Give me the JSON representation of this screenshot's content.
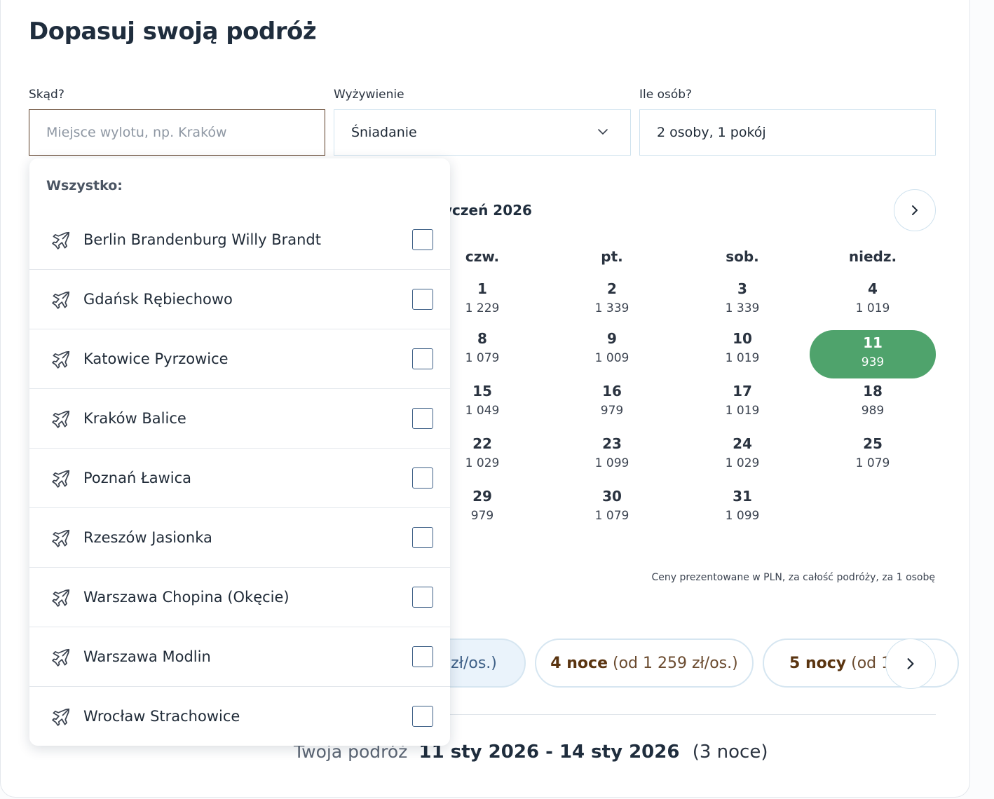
{
  "page_title": "Dopasuj swoją podróż",
  "fields": {
    "from": {
      "label": "Skąd?",
      "placeholder": "Miejsce wylotu, np. Kraków",
      "value": ""
    },
    "board": {
      "label": "Wyżywienie",
      "value": "Śniadanie"
    },
    "people": {
      "label": "Ile osób?",
      "value": "2 osoby, 1 pokój"
    }
  },
  "calendar": {
    "month_label": "yczeń 2026",
    "next_icon": "chevron-right-icon",
    "weekdays": [
      "czw.",
      "pt.",
      "sob.",
      "niedz."
    ],
    "weeks": [
      [
        {
          "d": "1",
          "p": "1 229"
        },
        {
          "d": "2",
          "p": "1 339"
        },
        {
          "d": "3",
          "p": "1 339"
        },
        {
          "d": "4",
          "p": "1 019"
        }
      ],
      [
        {
          "d": "8",
          "p": "1 079"
        },
        {
          "d": "9",
          "p": "1 009"
        },
        {
          "d": "10",
          "p": "1 019"
        },
        {
          "d": "11",
          "p": "939",
          "selected": true
        }
      ],
      [
        {
          "d": "15",
          "p": "1 049"
        },
        {
          "d": "16",
          "p": "979"
        },
        {
          "d": "17",
          "p": "1 019"
        },
        {
          "d": "18",
          "p": "989"
        }
      ],
      [
        {
          "d": "22",
          "p": "1 029"
        },
        {
          "d": "23",
          "p": "1 099"
        },
        {
          "d": "24",
          "p": "1 029"
        },
        {
          "d": "25",
          "p": "1 079"
        }
      ],
      [
        {
          "d": "29",
          "p": "979"
        },
        {
          "d": "30",
          "p": "1 079"
        },
        {
          "d": "31",
          "p": "1 099"
        }
      ]
    ],
    "selected_color": "#4fa36c",
    "note": "Ceny prezentowane w PLN, za całość podróży, za 1 osobę"
  },
  "nights": {
    "options": [
      {
        "bold": "",
        "rest": "zł/os.)",
        "style": "light"
      },
      {
        "bold": "4 noce",
        "rest": " (od 1 259 zł/os.)",
        "style": "normal"
      },
      {
        "bold": "5 nocy",
        "rest": " (od 1",
        "style": "normal"
      }
    ],
    "next_icon": "chevron-right-icon"
  },
  "summary": {
    "label": "Twoja podróż",
    "dates": "11 sty 2026 - 14 sty 2026",
    "nights": "(3 noce)"
  },
  "dropdown": {
    "header": "Wszystko:",
    "icon": "plane-icon",
    "items": [
      "Berlin Brandenburg Willy Brandt",
      "Gdańsk Rębiechowo",
      "Katowice Pyrzowice",
      "Kraków Balice",
      "Poznań Ławica",
      "Rzeszów Jasionka",
      "Warszawa Chopina (Okęcie)",
      "Warszawa Modlin",
      "Wrocław Strachowice"
    ]
  },
  "colors": {
    "accent_brown": "#5a3a22",
    "selected_green": "#4fa36c",
    "border_blue": "#cfe2ee"
  }
}
